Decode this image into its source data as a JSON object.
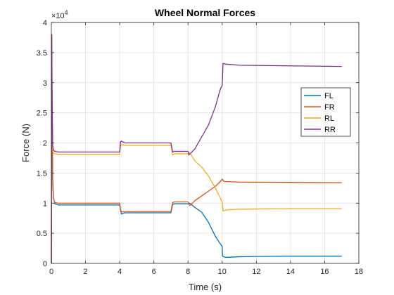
{
  "chart_data": {
    "type": "line",
    "title": "Wheel Normal Forces",
    "xlabel": "Time (s)",
    "ylabel": "Force (N)",
    "y_exponent_label": "×10",
    "y_exponent_power": "4",
    "y_scale": 10000,
    "xlim": [
      0,
      18
    ],
    "ylim": [
      0,
      40000
    ],
    "xticks": [
      0,
      2,
      4,
      6,
      8,
      10,
      12,
      14,
      16,
      18
    ],
    "yticks": [
      0,
      5000,
      10000,
      15000,
      20000,
      25000,
      30000,
      35000,
      40000
    ],
    "ytick_labels": [
      "0",
      "0.5",
      "1",
      "1.5",
      "2",
      "2.5",
      "3",
      "3.5",
      "4"
    ],
    "grid": true,
    "legend_position": "right",
    "series": [
      {
        "name": "FL",
        "color": "#0072BD",
        "points": [
          [
            0,
            0
          ],
          [
            0.02,
            38000
          ],
          [
            0.05,
            23000
          ],
          [
            0.08,
            14000
          ],
          [
            0.12,
            11000
          ],
          [
            0.2,
            9900
          ],
          [
            0.4,
            9700
          ],
          [
            4.0,
            9700
          ],
          [
            4.05,
            8900
          ],
          [
            4.1,
            8200
          ],
          [
            4.3,
            8400
          ],
          [
            7.0,
            8400
          ],
          [
            7.1,
            9800
          ],
          [
            7.2,
            9900
          ],
          [
            8.0,
            9900
          ],
          [
            8.1,
            10000
          ],
          [
            8.4,
            9300
          ],
          [
            8.8,
            8500
          ],
          [
            9.2,
            6800
          ],
          [
            9.6,
            4500
          ],
          [
            9.9,
            3200
          ],
          [
            10.0,
            2800
          ],
          [
            10.02,
            1200
          ],
          [
            10.2,
            1000
          ],
          [
            11,
            1100
          ],
          [
            12,
            1150
          ],
          [
            14,
            1200
          ],
          [
            17,
            1200
          ]
        ]
      },
      {
        "name": "FR",
        "color": "#D95319",
        "points": [
          [
            0,
            0
          ],
          [
            0.02,
            38000
          ],
          [
            0.05,
            22000
          ],
          [
            0.08,
            13000
          ],
          [
            0.12,
            10800
          ],
          [
            0.2,
            10100
          ],
          [
            0.4,
            10000
          ],
          [
            4.0,
            10000
          ],
          [
            4.05,
            9000
          ],
          [
            4.1,
            8500
          ],
          [
            4.3,
            8600
          ],
          [
            7.0,
            8600
          ],
          [
            7.1,
            10100
          ],
          [
            7.2,
            10200
          ],
          [
            8.0,
            10200
          ],
          [
            8.1,
            9600
          ],
          [
            8.4,
            10400
          ],
          [
            8.8,
            11200
          ],
          [
            9.2,
            12000
          ],
          [
            9.6,
            12800
          ],
          [
            9.9,
            13600
          ],
          [
            10.0,
            14000
          ],
          [
            10.1,
            13600
          ],
          [
            11,
            13500
          ],
          [
            14,
            13450
          ],
          [
            17,
            13400
          ]
        ]
      },
      {
        "name": "RL",
        "color": "#EDB120",
        "points": [
          [
            0,
            0
          ],
          [
            0.02,
            38000
          ],
          [
            0.05,
            24000
          ],
          [
            0.08,
            19000
          ],
          [
            0.12,
            18300
          ],
          [
            0.2,
            18200
          ],
          [
            0.4,
            18100
          ],
          [
            4.0,
            18100
          ],
          [
            4.05,
            19500
          ],
          [
            4.1,
            19700
          ],
          [
            4.3,
            19600
          ],
          [
            7.0,
            19600
          ],
          [
            7.1,
            18000
          ],
          [
            7.2,
            18200
          ],
          [
            8.0,
            18200
          ],
          [
            8.1,
            18400
          ],
          [
            8.4,
            17000
          ],
          [
            8.8,
            16000
          ],
          [
            9.2,
            14500
          ],
          [
            9.6,
            12500
          ],
          [
            9.9,
            10800
          ],
          [
            10.0,
            10200
          ],
          [
            10.05,
            8700
          ],
          [
            10.3,
            8900
          ],
          [
            11,
            9000
          ],
          [
            14,
            9100
          ],
          [
            17,
            9100
          ]
        ]
      },
      {
        "name": "RR",
        "color": "#7E2F8E",
        "points": [
          [
            0,
            0
          ],
          [
            0.02,
            38000
          ],
          [
            0.05,
            26000
          ],
          [
            0.08,
            19500
          ],
          [
            0.12,
            18800
          ],
          [
            0.2,
            18600
          ],
          [
            0.4,
            18500
          ],
          [
            4.0,
            18500
          ],
          [
            4.05,
            20200
          ],
          [
            4.1,
            20300
          ],
          [
            4.3,
            20000
          ],
          [
            7.0,
            20000
          ],
          [
            7.1,
            18500
          ],
          [
            7.2,
            18600
          ],
          [
            8.0,
            18600
          ],
          [
            8.05,
            18000
          ],
          [
            8.4,
            19000
          ],
          [
            8.8,
            21000
          ],
          [
            9.2,
            23000
          ],
          [
            9.6,
            26000
          ],
          [
            9.9,
            29000
          ],
          [
            10.0,
            29500
          ],
          [
            10.05,
            33200
          ],
          [
            10.2,
            33100
          ],
          [
            11,
            32900
          ],
          [
            14,
            32800
          ],
          [
            17,
            32700
          ]
        ]
      }
    ]
  }
}
